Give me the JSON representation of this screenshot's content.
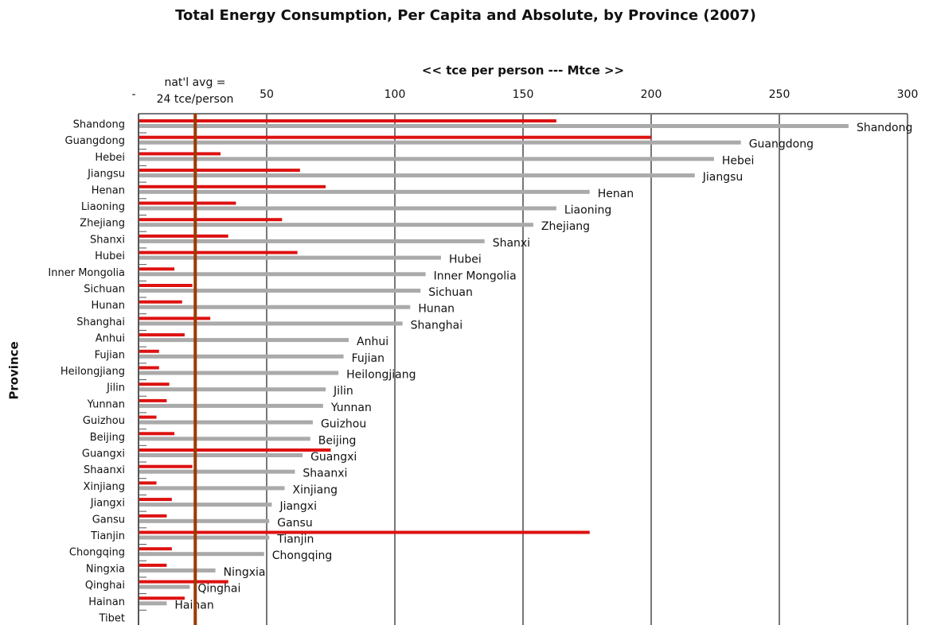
{
  "chart_data": {
    "type": "bar",
    "orientation": "horizontal",
    "title": "Total Energy Consumption, Per Capita and Absolute, by Province (2007)",
    "x_label": "<<  tce per person  ---  Mtce >>",
    "y_label": "Province",
    "categories": [
      "Shandong",
      "Guangdong",
      "Hebei",
      "Jiangsu",
      "Henan",
      "Liaoning",
      "Zhejiang",
      "Shanxi",
      "Hubei",
      "Inner Mongolia",
      "Sichuan",
      "Hunan",
      "Shanghai",
      "Anhui",
      "Fujian",
      "Heilongjiang",
      "Jilin",
      "Yunnan",
      "Guizhou",
      "Beijing",
      "Guangxi",
      "Shaanxi",
      "Xinjiang",
      "Jiangxi",
      "Gansu",
      "Tianjin",
      "Chongqing",
      "Ningxia",
      "Qinghai",
      "Hainan",
      "Tibet"
    ],
    "series": [
      {
        "color": "#dd1111",
        "values": [
          163,
          200,
          32,
          63,
          73,
          38,
          56,
          35,
          62,
          14,
          21,
          17,
          28,
          18,
          8,
          8,
          12,
          11,
          7,
          14,
          75,
          21,
          7,
          13,
          11,
          176,
          13,
          11,
          35,
          18,
          null
        ]
      },
      {
        "color": "#aaaaaa",
        "values": [
          277,
          235,
          224.5,
          217,
          176,
          163,
          154,
          135,
          118,
          112,
          110,
          106,
          103,
          82,
          80,
          78,
          73,
          72,
          68,
          67,
          64,
          61,
          57,
          52,
          51,
          51,
          49,
          30,
          20,
          11,
          null
        ]
      }
    ],
    "xlim": [
      0,
      300
    ],
    "xticks": [
      {
        "value": 0,
        "label": "-"
      },
      50,
      100,
      150,
      200,
      250,
      300
    ],
    "grid": true,
    "reference_line": {
      "value": 24,
      "color": "#9a3b00",
      "label_lines": [
        "nat'l avg =",
        "24 tce/person"
      ]
    }
  }
}
